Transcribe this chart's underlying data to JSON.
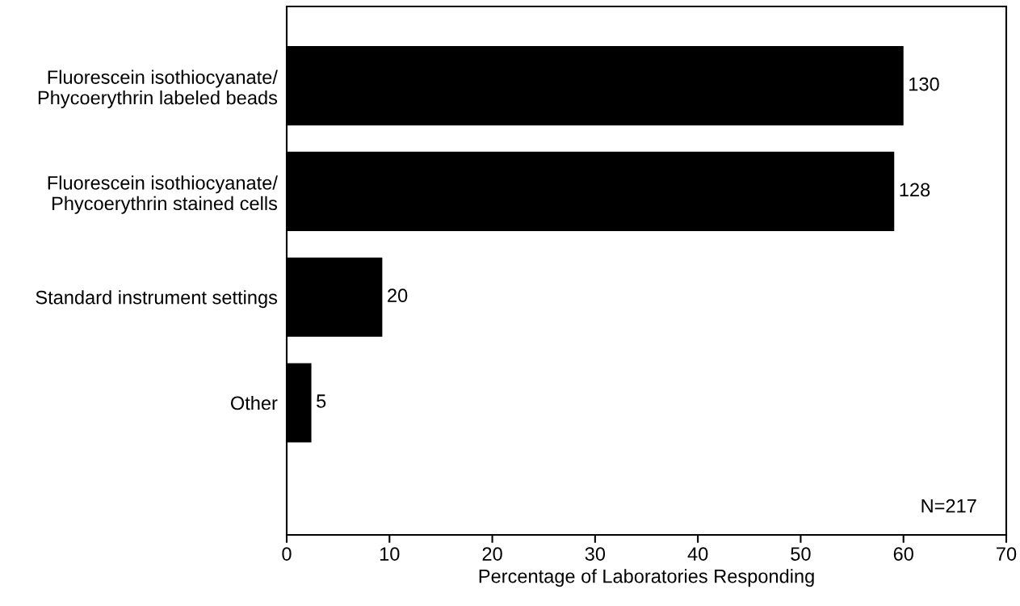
{
  "chart_data": {
    "type": "bar",
    "orientation": "horizontal",
    "xlabel": "Percentage of Laboratories Responding",
    "categories": [
      "Fluorescein isothiocyanate/\nPhycoerythrin labeled beads",
      "Fluorescein isothiocyanate/\nPhycoerythrin stained cells",
      "Standard instrument settings",
      "Other"
    ],
    "values": [
      60,
      59.1,
      9.3,
      2.4
    ],
    "color": "#000000",
    "xlim": [
      0,
      70
    ],
    "xticks": [
      0,
      10,
      20,
      30,
      40,
      50,
      60,
      70
    ],
    "annotations": [
      {
        "text": "130",
        "x": 60,
        "y": "Fluorescein isothiocyanate/\nPhycoerythrin labeled beads"
      },
      {
        "text": "128",
        "x": 59.1,
        "y": "Fluorescein isothiocyanate/\nPhycoerythrin stained cells"
      },
      {
        "text": "20",
        "x": 9.3,
        "y": "Standard instrument settings"
      },
      {
        "text": "5",
        "x": 2.4,
        "y": "Other"
      },
      "N=217"
    ],
    "grid": false,
    "legend": false
  }
}
